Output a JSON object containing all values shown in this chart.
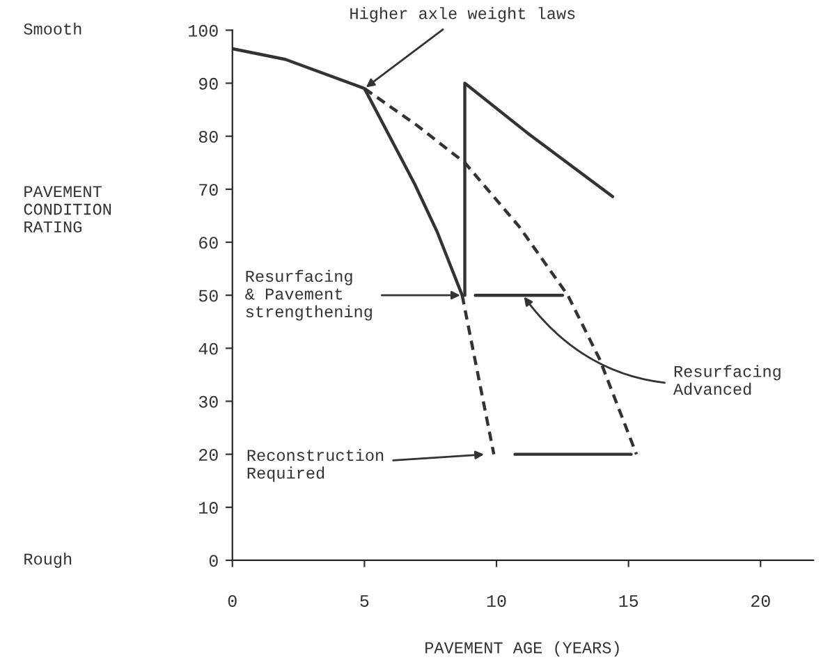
{
  "chart_data": {
    "type": "line",
    "xlabel": "PAVEMENT AGE (YEARS)",
    "ylabel": "PAVEMENT\nCONDITION\nRATING",
    "xlim": [
      0,
      22
    ],
    "xticks": [
      0,
      5,
      10,
      15,
      20
    ],
    "ylim": [
      0,
      100
    ],
    "yticks": [
      0,
      10,
      20,
      30,
      40,
      50,
      60,
      70,
      80,
      90,
      100
    ],
    "grid": false,
    "legend": false,
    "marker": "none",
    "series": [
      {
        "color": "#333333",
        "line_style": "solid",
        "x": [
          0,
          2,
          5,
          6.9,
          7.75,
          8.7
        ],
        "values": [
          96.5,
          94.5,
          89,
          71,
          62,
          50
        ]
      },
      {
        "color": "#333333",
        "line_style": "dashed",
        "x": [
          8.7,
          9.9
        ],
        "values": [
          50,
          20
        ]
      },
      {
        "color": "#333333",
        "line_style": "dashed",
        "x": [
          5,
          7,
          8.8,
          10.85,
          12.7,
          13.9,
          15.3
        ],
        "values": [
          89,
          82,
          75,
          63,
          50,
          38,
          20
        ]
      },
      {
        "color": "#333333",
        "line_style": "solid",
        "x": [
          8.8,
          8.8,
          11.2,
          14.4
        ],
        "values": [
          50,
          90,
          80.5,
          68.6
        ]
      },
      {
        "color": "#333333",
        "line_style": "solid",
        "x": [
          9.2,
          12.5
        ],
        "values": [
          50,
          50
        ]
      },
      {
        "color": "#333333",
        "line_style": "solid",
        "x": [
          10.7,
          15.1
        ],
        "values": [
          20,
          20
        ]
      }
    ],
    "annotations": [
      "Smooth",
      "Rough",
      {
        "text": "Higher axle weight laws",
        "x": 5,
        "y": 89
      },
      {
        "text": "Resurfacing\n& Pavement\nstrengthening",
        "x": 8.7,
        "y": 50
      },
      {
        "text": "Resurfacing\nAdvanced",
        "x": 11,
        "y": 50
      },
      {
        "text": "Reconstruction\nRequired",
        "x": 9.6,
        "y": 20
      }
    ]
  }
}
